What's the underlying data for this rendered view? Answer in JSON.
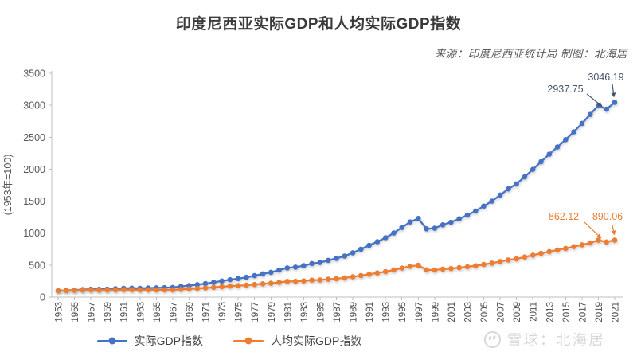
{
  "title": "印度尼西亚实际GDP和人均实际GDP指数",
  "source_note": "来源：印度尼西亚统计局 制图：北海居",
  "watermark": {
    "logo": "xueqiu-snowball-logo",
    "text": "雪球：北海居"
  },
  "legend": [
    {
      "label": "实际GDP指数",
      "color": "#4472C4"
    },
    {
      "label": "人均实际GDP指数",
      "color": "#ED7D31"
    }
  ],
  "chart_data": {
    "type": "line",
    "title": "印度尼西亚实际GDP和人均实际GDP指数",
    "subtitle": "来源：印度尼西亚统计局 制图：北海居",
    "xlabel": "",
    "ylabel": "(1953年=100)",
    "ylim": [
      0,
      3500
    ],
    "ytick_interval": 500,
    "yticks": [
      0,
      500,
      1000,
      1500,
      2000,
      2500,
      3000,
      3500
    ],
    "xtick_step_years": 2,
    "grid": false,
    "legend_position": "bottom",
    "marker": "circle",
    "x": [
      1953,
      1954,
      1955,
      1956,
      1957,
      1958,
      1959,
      1960,
      1961,
      1962,
      1963,
      1964,
      1965,
      1966,
      1967,
      1968,
      1969,
      1970,
      1971,
      1972,
      1973,
      1974,
      1975,
      1976,
      1977,
      1978,
      1979,
      1980,
      1981,
      1982,
      1983,
      1984,
      1985,
      1986,
      1987,
      1988,
      1989,
      1990,
      1991,
      1992,
      1993,
      1994,
      1995,
      1996,
      1997,
      1998,
      1999,
      2000,
      2001,
      2002,
      2003,
      2004,
      2005,
      2006,
      2007,
      2008,
      2009,
      2010,
      2011,
      2012,
      2013,
      2014,
      2015,
      2016,
      2017,
      2018,
      2019,
      2020,
      2021
    ],
    "series": [
      {
        "name": "实际GDP指数",
        "color": "#4472C4",
        "values": [
          100,
          105,
          110,
          116,
          122,
          121,
          125,
          130,
          137,
          139,
          137,
          142,
          144,
          147,
          151,
          167,
          179,
          194,
          210,
          230,
          252,
          272,
          289,
          309,
          335,
          362,
          387,
          422,
          456,
          468,
          491,
          525,
          541,
          574,
          605,
          642,
          693,
          748,
          808,
          865,
          928,
          1002,
          1087,
          1174,
          1229,
          1068,
          1076,
          1130,
          1171,
          1224,
          1283,
          1347,
          1423,
          1501,
          1596,
          1692,
          1770,
          1880,
          1997,
          2117,
          2235,
          2347,
          2462,
          2585,
          2717,
          2856,
          2999.86,
          2937.75,
          3046.19
        ]
      },
      {
        "name": "人均实际GDP指数",
        "color": "#ED7D31",
        "values": [
          100,
          103,
          106,
          109,
          113,
          110,
          111,
          113,
          116,
          115,
          112,
          113,
          112,
          112,
          112,
          121,
          127,
          134,
          142,
          152,
          163,
          172,
          178,
          186,
          197,
          208,
          217,
          231,
          245,
          246,
          253,
          265,
          268,
          279,
          288,
          300,
          317,
          336,
          357,
          377,
          398,
          424,
          453,
          482,
          497,
          426,
          423,
          437,
          446,
          459,
          474,
          490,
          510,
          530,
          555,
          580,
          598,
          626,
          655,
          684,
          711,
          736,
          761,
          788,
          817,
          847,
          889.5,
          862.12,
          890.06
        ]
      }
    ],
    "annotations": [
      {
        "series": "实际GDP指数",
        "year": 2020,
        "label": "2937.75"
      },
      {
        "series": "实际GDP指数",
        "year": 2021,
        "label": "3046.19"
      },
      {
        "series": "人均实际GDP指数",
        "year": 2020,
        "label": "862.12"
      },
      {
        "series": "人均实际GDP指数",
        "year": 2021,
        "label": "890.06"
      }
    ]
  }
}
